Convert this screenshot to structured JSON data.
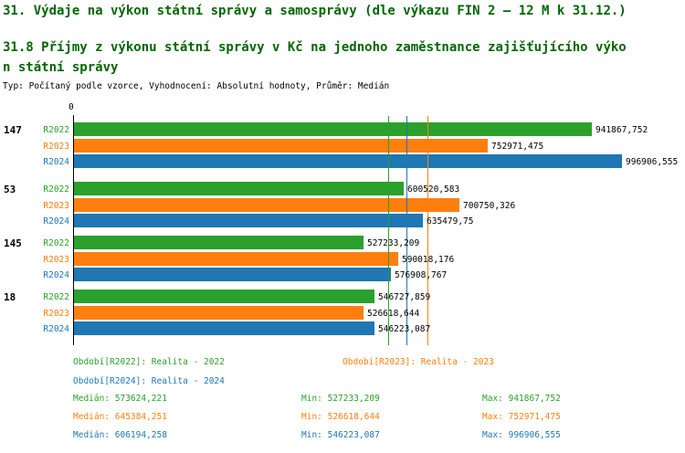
{
  "header": {
    "title": "31. Výdaje na výkon státní správy a samosprávy (dle výkazu FIN 2 – 12 M k 31.12.)",
    "subtitle": "31.8 Příjmy z výkonu státní správy v Kč na jednoho zaměstnance zajišťujícího výkon státní správy",
    "meta": "Typ: Počítaný podle vzorce, Vyhodnocení: Absolutní hodnoty, Průměr: Medián"
  },
  "colors": {
    "r2022_green": "#2ca02c",
    "r2023_orange": "#ff7f0e",
    "r2024_blue": "#1f77b4",
    "title_green": "#006600",
    "text_black": "#000000"
  },
  "chart_data": {
    "type": "bar",
    "orientation": "horizontal",
    "grid": false,
    "legend_position": "bottom",
    "x_axis": {
      "origin_tick": "0",
      "min": 0,
      "max": 996906.555
    },
    "categories": [
      "147",
      "53",
      "145",
      "18"
    ],
    "series": [
      {
        "name": "R2022",
        "legend_label": "Realita - 2022",
        "color": "#2ca02c",
        "values": [
          941867.752,
          600520.583,
          527233.209,
          546727.859
        ],
        "value_labels": [
          "941867,752",
          "600520,583",
          "527233,209",
          "546727,859"
        ],
        "median": 573624.221,
        "min": 527233.209,
        "max": 941867.752
      },
      {
        "name": "R2023",
        "legend_label": "Realita - 2023",
        "color": "#ff7f0e",
        "values": [
          752971.475,
          700750.326,
          590018.176,
          526618.644
        ],
        "value_labels": [
          "752971,475",
          "700750,326",
          "590018,176",
          "526618,644"
        ],
        "median": 645384.251,
        "min": 526618.644,
        "max": 752971.475
      },
      {
        "name": "R2024",
        "legend_label": "Realita - 2024",
        "color": "#1f77b4",
        "values": [
          996906.555,
          635479.75,
          576908.767,
          546223.087
        ],
        "value_labels": [
          "996906,555",
          "635479,75",
          "576908,767",
          "546223,087"
        ],
        "median": 606194.258,
        "min": 546223.087,
        "max": 996906.555
      }
    ]
  },
  "legend": {
    "items": [
      {
        "label": "Období[R2022]: Realita - 2022",
        "color": "#2ca02c"
      },
      {
        "label": "Období[R2023]: Realita - 2023",
        "color": "#ff7f0e"
      },
      {
        "label": "Období[R2024]: Realita - 2024",
        "color": "#1f77b4"
      }
    ]
  },
  "stats": {
    "rows": [
      {
        "median": "Medián: 573624,221",
        "min": "Min: 527233,209",
        "max": "Max: 941867,752",
        "color": "#2ca02c"
      },
      {
        "median": "Medián: 645384,251",
        "min": "Min: 526618,644",
        "max": "Max: 752971,475",
        "color": "#ff7f0e"
      },
      {
        "median": "Medián: 606194,258",
        "min": "Min: 546223,087",
        "max": "Max: 996906,555",
        "color": "#1f77b4"
      }
    ]
  }
}
